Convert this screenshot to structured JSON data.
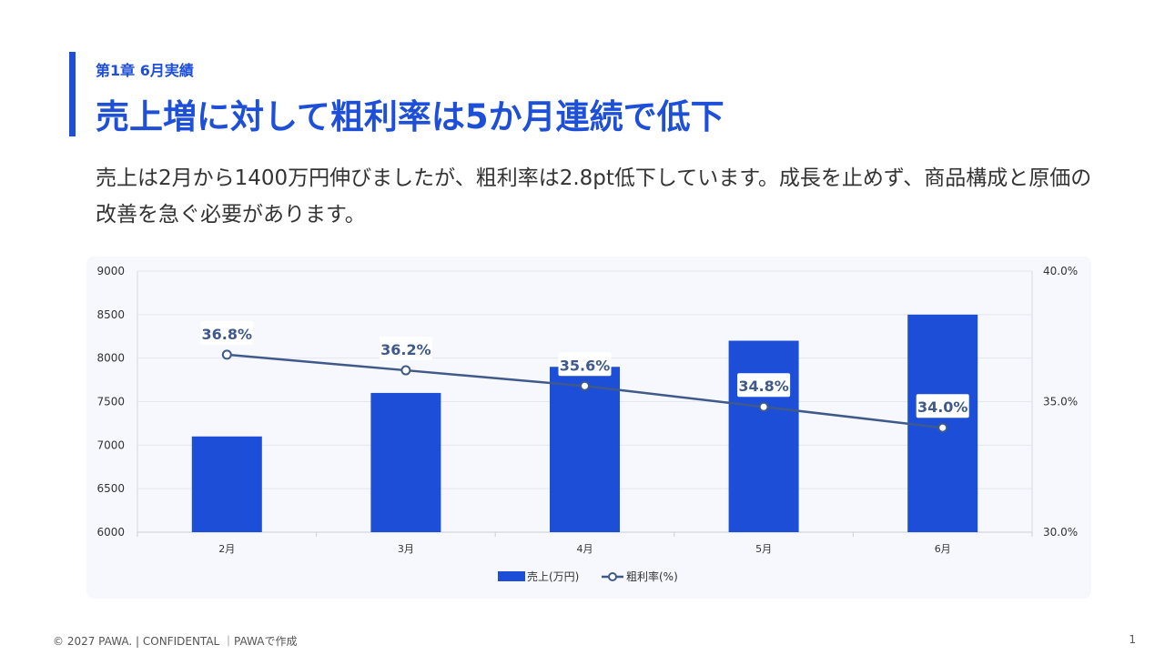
{
  "slide": {
    "chapter": "第1章 6月実績",
    "title": "売上増に対して粗利率は5か月連続で低下",
    "lead": "売上は2月から1400万円伸びましたが、粗利率は2.8pt低下しています。成長を止めず、商品構成と原価の改善を急ぐ必要があります。",
    "footer": "© 2027 PAWA. | CONFIDENTAL ｜PAWAで作成",
    "page_number": "1"
  },
  "colors": {
    "accent": "#1e4fd8",
    "bar": "#1d4ed8",
    "line": "#3f5a8a",
    "panel": "#f6f8fd"
  },
  "chart_data": {
    "type": "bar",
    "categories": [
      "2月",
      "3月",
      "4月",
      "5月",
      "6月"
    ],
    "series": [
      {
        "name": "売上(万円)",
        "type": "bar",
        "axis": "left",
        "values": [
          7100,
          7600,
          7900,
          8200,
          8500
        ]
      },
      {
        "name": "粗利率(%)",
        "type": "line",
        "axis": "right",
        "values": [
          36.8,
          36.2,
          35.6,
          34.8,
          34.0
        ],
        "labels": [
          "36.8%",
          "36.2%",
          "35.6%",
          "34.8%",
          "34.0%"
        ]
      }
    ],
    "y_left": {
      "min": 6000,
      "max": 9000,
      "ticks": [
        "6000",
        "6500",
        "7000",
        "7500",
        "8000",
        "8500",
        "9000"
      ]
    },
    "y_right": {
      "min": 30,
      "max": 40,
      "ticks": [
        "30.0%",
        "35.0%",
        "40.0%"
      ]
    },
    "grid": true,
    "legend_position": "bottom"
  }
}
